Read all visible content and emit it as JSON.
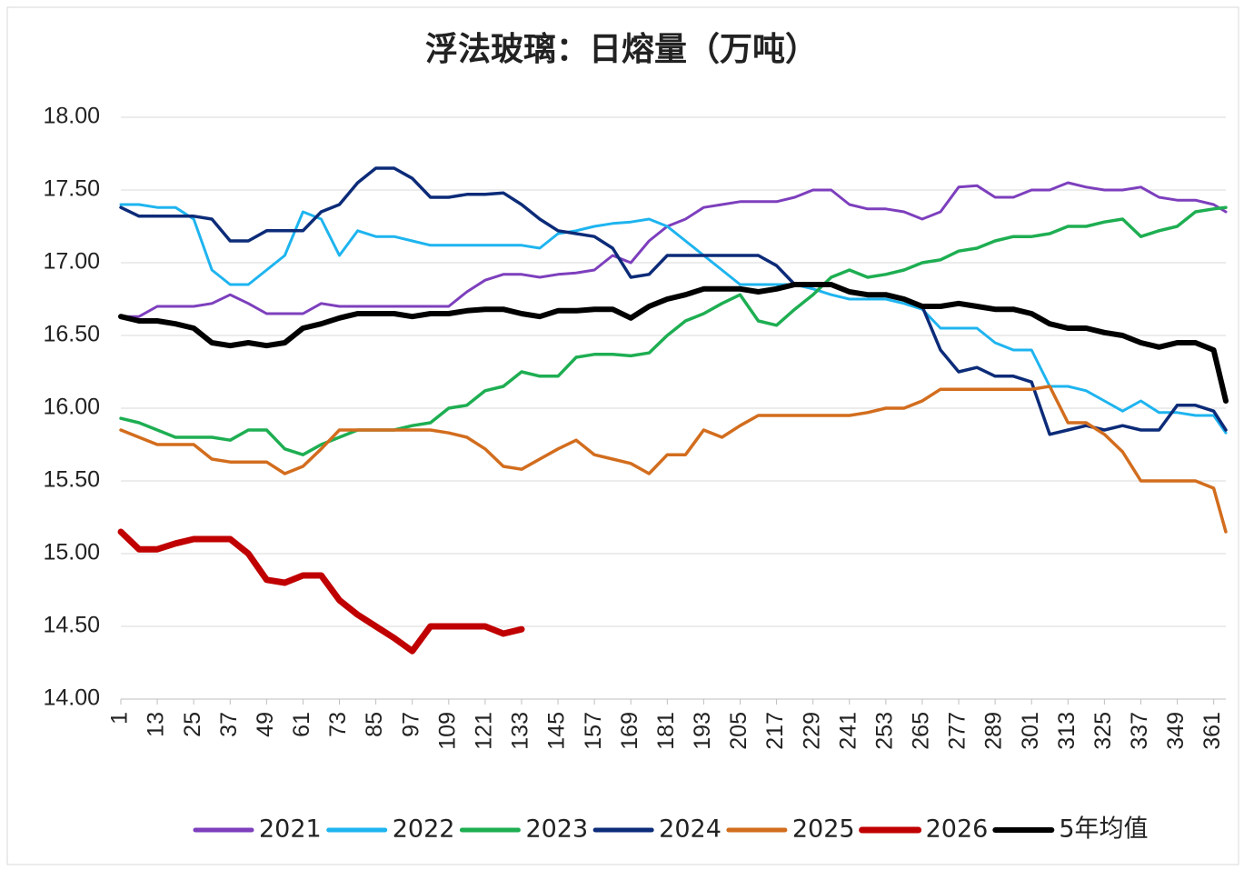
{
  "chart_data": {
    "type": "line",
    "title": "浮法玻璃：日熔量（万吨）",
    "x": [
      1,
      7,
      13,
      19,
      25,
      31,
      37,
      43,
      49,
      55,
      61,
      67,
      73,
      79,
      85,
      91,
      97,
      103,
      109,
      115,
      121,
      127,
      133,
      139,
      145,
      151,
      157,
      163,
      169,
      175,
      181,
      187,
      193,
      199,
      205,
      211,
      217,
      223,
      229,
      235,
      241,
      247,
      253,
      259,
      265,
      271,
      277,
      283,
      289,
      295,
      301,
      307,
      313,
      319,
      325,
      331,
      337,
      343,
      349,
      355,
      361,
      365
    ],
    "xlim": [
      1,
      365
    ],
    "xticks": [
      1,
      13,
      25,
      37,
      49,
      61,
      73,
      85,
      97,
      109,
      121,
      133,
      145,
      157,
      169,
      181,
      193,
      205,
      217,
      229,
      241,
      253,
      265,
      277,
      289,
      301,
      313,
      325,
      337,
      349,
      361
    ],
    "ylim": [
      14,
      18
    ],
    "yticks": [
      {
        "value": 14,
        "label": "14.00"
      },
      {
        "value": 14.5,
        "label": "14.50"
      },
      {
        "value": 15,
        "label": "15.00"
      },
      {
        "value": 15.5,
        "label": "15.50"
      },
      {
        "value": 16,
        "label": "16.00"
      },
      {
        "value": 16.5,
        "label": "16.50"
      },
      {
        "value": 17,
        "label": "17.00"
      },
      {
        "value": 17.5,
        "label": "17.50"
      },
      {
        "value": 18,
        "label": "18.00"
      }
    ],
    "grid": true,
    "legend": "bottom",
    "series": [
      {
        "name": "2021",
        "color": "#7d3fbd",
        "width": 3,
        "values": [
          16.63,
          16.63,
          16.7,
          16.7,
          16.7,
          16.72,
          16.78,
          16.72,
          16.65,
          16.65,
          16.65,
          16.72,
          16.7,
          16.7,
          16.7,
          16.7,
          16.7,
          16.7,
          16.7,
          16.8,
          16.88,
          16.92,
          16.92,
          16.9,
          16.92,
          16.93,
          16.95,
          17.05,
          17.0,
          17.15,
          17.25,
          17.3,
          17.38,
          17.4,
          17.42,
          17.42,
          17.42,
          17.45,
          17.5,
          17.5,
          17.4,
          17.37,
          17.37,
          17.35,
          17.3,
          17.35,
          17.52,
          17.53,
          17.45,
          17.45,
          17.5,
          17.5,
          17.55,
          17.52,
          17.5,
          17.5,
          17.52,
          17.45,
          17.43,
          17.43,
          17.4,
          17.35
        ]
      },
      {
        "name": "2022",
        "color": "#1eb4ef",
        "width": 3,
        "values": [
          17.4,
          17.4,
          17.38,
          17.38,
          17.3,
          16.95,
          16.85,
          16.85,
          16.95,
          17.05,
          17.35,
          17.3,
          17.05,
          17.22,
          17.18,
          17.18,
          17.15,
          17.12,
          17.12,
          17.12,
          17.12,
          17.12,
          17.12,
          17.1,
          17.2,
          17.22,
          17.25,
          17.27,
          17.28,
          17.3,
          17.25,
          17.15,
          17.05,
          16.95,
          16.85,
          16.85,
          16.85,
          16.85,
          16.82,
          16.78,
          16.75,
          16.75,
          16.75,
          16.72,
          16.68,
          16.55,
          16.55,
          16.55,
          16.45,
          16.4,
          16.4,
          16.15,
          16.15,
          16.12,
          16.05,
          15.98,
          16.05,
          15.97,
          15.97,
          15.95,
          15.95,
          15.83
        ]
      },
      {
        "name": "2023",
        "color": "#1eae52",
        "width": 3.5,
        "values": [
          15.93,
          15.9,
          15.85,
          15.8,
          15.8,
          15.8,
          15.78,
          15.85,
          15.85,
          15.72,
          15.68,
          15.75,
          15.8,
          15.85,
          15.85,
          15.85,
          15.88,
          15.9,
          16.0,
          16.02,
          16.12,
          16.15,
          16.25,
          16.22,
          16.22,
          16.35,
          16.37,
          16.37,
          16.36,
          16.38,
          16.5,
          16.6,
          16.65,
          16.72,
          16.78,
          16.6,
          16.57,
          16.68,
          16.78,
          16.9,
          16.95,
          16.9,
          16.92,
          16.95,
          17.0,
          17.02,
          17.08,
          17.1,
          17.15,
          17.18,
          17.18,
          17.2,
          17.25,
          17.25,
          17.28,
          17.3,
          17.18,
          17.22,
          17.25,
          17.35,
          17.37,
          17.38
        ]
      },
      {
        "name": "2024",
        "color": "#0c2b78",
        "width": 3.5,
        "values": [
          17.38,
          17.32,
          17.32,
          17.32,
          17.32,
          17.3,
          17.15,
          17.15,
          17.22,
          17.22,
          17.22,
          17.35,
          17.4,
          17.55,
          17.65,
          17.65,
          17.58,
          17.45,
          17.45,
          17.47,
          17.47,
          17.48,
          17.4,
          17.3,
          17.22,
          17.2,
          17.18,
          17.1,
          16.9,
          16.92,
          17.05,
          17.05,
          17.05,
          17.05,
          17.05,
          17.05,
          16.98,
          16.85,
          16.85,
          16.85,
          16.8,
          16.78,
          16.78,
          16.75,
          16.7,
          16.4,
          16.25,
          16.28,
          16.22,
          16.22,
          16.18,
          15.82,
          15.85,
          15.88,
          15.85,
          15.88,
          15.85,
          15.85,
          16.02,
          16.02,
          15.98,
          15.85
        ]
      },
      {
        "name": "2025",
        "color": "#d26d1e",
        "width": 3.5,
        "values": [
          15.85,
          15.8,
          15.75,
          15.75,
          15.75,
          15.65,
          15.63,
          15.63,
          15.63,
          15.55,
          15.6,
          15.72,
          15.85,
          15.85,
          15.85,
          15.85,
          15.85,
          15.85,
          15.83,
          15.8,
          15.72,
          15.6,
          15.58,
          15.65,
          15.72,
          15.78,
          15.68,
          15.65,
          15.62,
          15.55,
          15.68,
          15.68,
          15.85,
          15.8,
          15.88,
          15.95,
          15.95,
          15.95,
          15.95,
          15.95,
          15.95,
          15.97,
          16.0,
          16.0,
          16.05,
          16.13,
          16.13,
          16.13,
          16.13,
          16.13,
          16.13,
          16.15,
          15.9,
          15.9,
          15.82,
          15.7,
          15.5,
          15.5,
          15.5,
          15.5,
          15.45,
          15.15
        ]
      },
      {
        "name": "2026",
        "color": "#c00000",
        "width": 7,
        "values": [
          15.15,
          15.03,
          15.03,
          15.07,
          15.1,
          15.1,
          15.1,
          15.0,
          14.82,
          14.8,
          14.85,
          14.85,
          14.68,
          14.58,
          14.5,
          14.42,
          14.33,
          14.5,
          14.5,
          14.5,
          14.5,
          14.45,
          14.48,
          null,
          null,
          null,
          null,
          null,
          null,
          null,
          null,
          null,
          null,
          null,
          null,
          null,
          null,
          null,
          null,
          null,
          null,
          null,
          null,
          null,
          null,
          null,
          null,
          null,
          null,
          null,
          null,
          null,
          null,
          null,
          null,
          null,
          null,
          null,
          null,
          null,
          null,
          null
        ]
      },
      {
        "name": "5年均值",
        "color": "#000000",
        "width": 6,
        "values": [
          16.63,
          16.6,
          16.6,
          16.58,
          16.55,
          16.45,
          16.43,
          16.45,
          16.43,
          16.45,
          16.55,
          16.58,
          16.62,
          16.65,
          16.65,
          16.65,
          16.63,
          16.65,
          16.65,
          16.67,
          16.68,
          16.68,
          16.65,
          16.63,
          16.67,
          16.67,
          16.68,
          16.68,
          16.62,
          16.7,
          16.75,
          16.78,
          16.82,
          16.82,
          16.82,
          16.8,
          16.82,
          16.85,
          16.85,
          16.85,
          16.8,
          16.78,
          16.78,
          16.75,
          16.7,
          16.7,
          16.72,
          16.7,
          16.68,
          16.68,
          16.65,
          16.58,
          16.55,
          16.55,
          16.52,
          16.5,
          16.45,
          16.42,
          16.45,
          16.45,
          16.4,
          16.05
        ]
      }
    ]
  }
}
